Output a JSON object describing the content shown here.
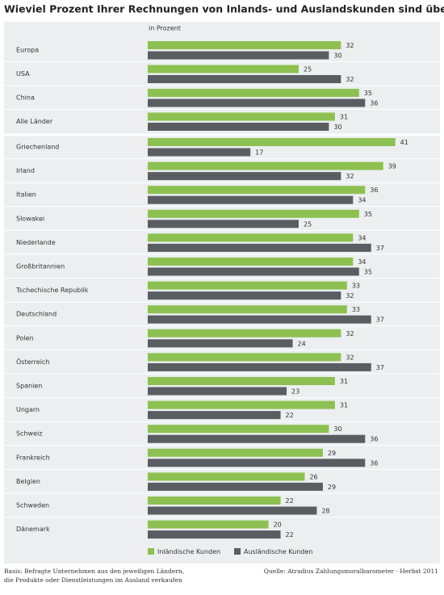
{
  "chart_data": {
    "type": "bar",
    "orientation": "horizontal",
    "title": "Wieviel Prozent Ihrer Rechnungen von Inlands- und Auslandskunden sind überfällig?",
    "unit_label": "in Prozent",
    "categories": [
      "Europa",
      "USA",
      "China",
      "Alle Länder",
      "Griechenland",
      "Irland",
      "Italien",
      "Slowakei",
      "Niederlande",
      "Großbritannien",
      "Tschechische Republik",
      "Deutschland",
      "Polen",
      "Österreich",
      "Spanien",
      "Ungarn",
      "Schweiz",
      "Frankreich",
      "Belgien",
      "Schweden",
      "Dänemark"
    ],
    "series": [
      {
        "name": "Inländische Kunden",
        "color": "#8cc152",
        "values": [
          32,
          25,
          35,
          31,
          41,
          39,
          36,
          35,
          34,
          34,
          33,
          33,
          32,
          32,
          31,
          31,
          30,
          29,
          26,
          22,
          20
        ]
      },
      {
        "name": "Ausländische Kunden",
        "color": "#5a5e62",
        "values": [
          30,
          32,
          36,
          30,
          17,
          32,
          34,
          25,
          37,
          35,
          32,
          37,
          24,
          37,
          23,
          22,
          36,
          36,
          29,
          28,
          22
        ]
      }
    ],
    "basis": [
      "Basis: Befragte Unternehmen aus den jeweiligen Ländern,",
      "die Produkte oder Dienstleistungen im Ausland verkaufen"
    ],
    "source": "Quelle: Atradius Zahlungsmoralbarometer · Herbst 2011"
  }
}
